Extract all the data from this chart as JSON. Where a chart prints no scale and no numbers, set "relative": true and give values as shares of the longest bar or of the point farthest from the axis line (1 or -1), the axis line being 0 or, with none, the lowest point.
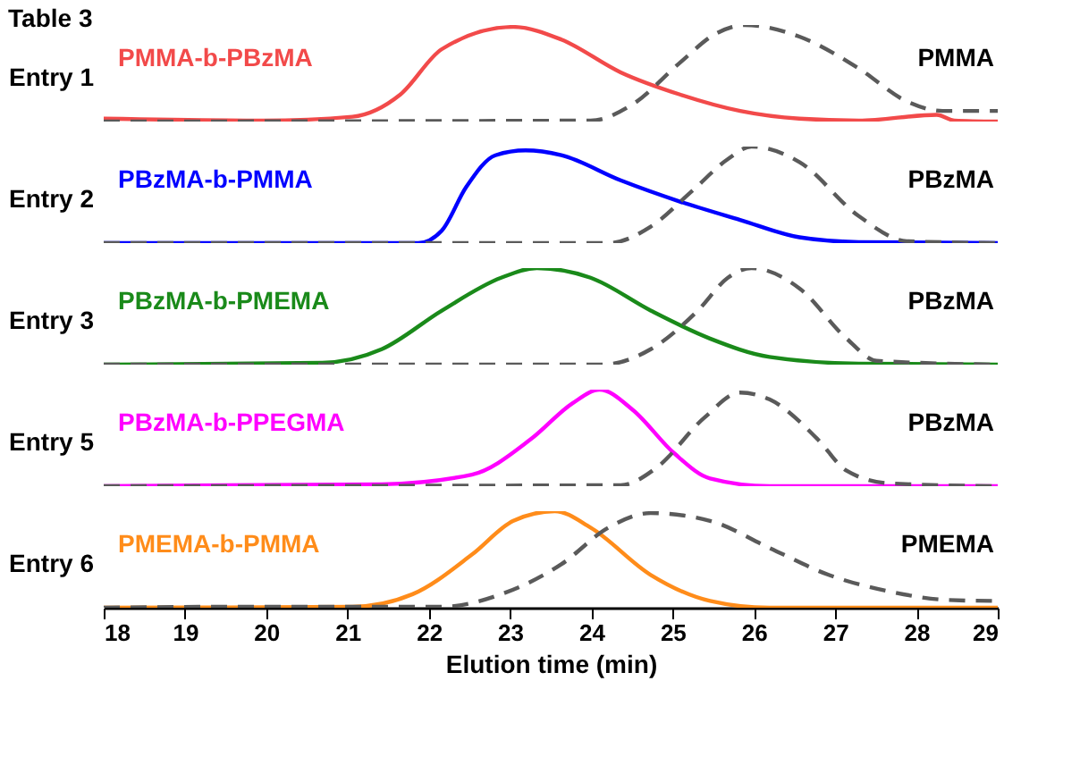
{
  "chart_data": [
    {
      "type": "line",
      "title": "Table 3",
      "ylabel": "Entry 1",
      "relative": true,
      "xlim": [
        18,
        29
      ],
      "xticks": [
        18,
        19,
        20,
        21,
        22,
        23,
        24,
        25,
        26,
        27,
        28,
        29
      ],
      "tick_labels": false,
      "grid": false,
      "legend": false,
      "marker": "none",
      "series": [
        {
          "name": "PMMA-b-PBzMA",
          "color": "#f24a4a",
          "line_style": "solid",
          "x": [
            18.0,
            19.96,
            21.06,
            21.65,
            22.16,
            23.04,
            23.63,
            24.36,
            25.09,
            25.83,
            26.56,
            27.29,
            28.25,
            28.47,
            29.0
          ],
          "values": [
            0.03,
            0.01,
            0.05,
            0.28,
            0.75,
            0.98,
            0.85,
            0.51,
            0.28,
            0.11,
            0.03,
            0.01,
            0.07,
            0.01,
            0
          ]
        },
        {
          "name": "PMMA",
          "color": "#5a5a5a",
          "line_style": "dashed",
          "x": [
            18.0,
            23.99,
            24.51,
            25.09,
            25.53,
            25.89,
            26.56,
            27.29,
            27.88,
            28.32,
            29.0
          ],
          "values": [
            0,
            0.01,
            0.18,
            0.61,
            0.91,
            1.0,
            0.88,
            0.55,
            0.21,
            0.11,
            0.11
          ]
        }
      ]
    },
    {
      "type": "line",
      "ylabel": "Entry 2",
      "relative": true,
      "xlim": [
        18,
        29
      ],
      "xticks": [
        18,
        19,
        20,
        21,
        22,
        23,
        24,
        25,
        26,
        27,
        28,
        29
      ],
      "tick_labels": false,
      "grid": false,
      "legend": false,
      "marker": "none",
      "series": [
        {
          "name": "PBzMA-b-PMMA",
          "color": "#0000ff",
          "line_style": "solid",
          "x": [
            18.0,
            21.87,
            22.16,
            22.46,
            22.82,
            23.19,
            23.63,
            24.36,
            25.09,
            25.83,
            26.56,
            27.29,
            29.0
          ],
          "values": [
            0,
            0,
            0.13,
            0.58,
            0.91,
            0.96,
            0.91,
            0.65,
            0.43,
            0.24,
            0.06,
            0.01,
            0
          ]
        },
        {
          "name": "PBzMA",
          "color": "#5a5a5a",
          "line_style": "dashed",
          "x": [
            18.0,
            24.21,
            24.73,
            25.24,
            25.68,
            25.97,
            26.56,
            27.29,
            27.88,
            29.0
          ],
          "values": [
            0,
            0,
            0.17,
            0.54,
            0.87,
            1.0,
            0.84,
            0.28,
            0.02,
            0
          ]
        }
      ]
    },
    {
      "type": "line",
      "ylabel": "Entry 3",
      "relative": true,
      "xlim": [
        18,
        29
      ],
      "xticks": [
        18,
        19,
        20,
        21,
        22,
        23,
        24,
        25,
        26,
        27,
        28,
        29
      ],
      "tick_labels": false,
      "grid": false,
      "legend": false,
      "marker": "none",
      "series": [
        {
          "name": "PBzMA-b-PMEMA",
          "color": "#1a8a1a",
          "line_style": "solid",
          "x": [
            18.0,
            20.69,
            21.42,
            22.16,
            22.89,
            23.33,
            23.99,
            24.73,
            25.46,
            26.19,
            27.29,
            29.0
          ],
          "values": [
            0,
            0.02,
            0.16,
            0.56,
            0.9,
            1.0,
            0.9,
            0.56,
            0.27,
            0.08,
            0.01,
            0
          ]
        },
        {
          "name": "PBzMA",
          "color": "#5a5a5a",
          "line_style": "dashed",
          "x": [
            18.0,
            24.14,
            24.73,
            25.31,
            25.68,
            25.97,
            26.56,
            27.14,
            27.51,
            29.0
          ],
          "values": [
            0,
            0,
            0.16,
            0.56,
            0.9,
            1.0,
            0.79,
            0.27,
            0.04,
            0
          ]
        }
      ]
    },
    {
      "type": "line",
      "ylabel": "Entry 5",
      "relative": true,
      "xlim": [
        18,
        29
      ],
      "xticks": [
        18,
        19,
        20,
        21,
        22,
        23,
        24,
        25,
        26,
        27,
        28,
        29
      ],
      "tick_labels": false,
      "grid": false,
      "legend": false,
      "marker": "none",
      "series": [
        {
          "name": "PBzMA-b-PPEGMA",
          "color": "#ff00ff",
          "line_style": "solid",
          "x": [
            18.0,
            21.42,
            22.53,
            23.26,
            23.77,
            24.1,
            24.51,
            25.02,
            25.46,
            26.19,
            29.0
          ],
          "values": [
            0,
            0.02,
            0.12,
            0.49,
            0.86,
            1.0,
            0.79,
            0.34,
            0.08,
            0,
            0
          ]
        },
        {
          "name": "PBzMA",
          "color": "#5a5a5a",
          "line_style": "dashed",
          "x": [
            18.0,
            24.36,
            24.8,
            25.39,
            25.83,
            26.19,
            26.78,
            27.14,
            27.66,
            29.0
          ],
          "values": [
            0,
            0.01,
            0.19,
            0.71,
            0.97,
            0.9,
            0.49,
            0.16,
            0.03,
            0
          ]
        }
      ]
    },
    {
      "type": "line",
      "ylabel": "Entry 6",
      "xlabel": "Elution time (min)",
      "relative": true,
      "xlim": [
        18,
        29
      ],
      "xticks": [
        18,
        19,
        20,
        21,
        22,
        23,
        24,
        25,
        26,
        27,
        28,
        29
      ],
      "tick_labels": "x",
      "grid": false,
      "legend": false,
      "marker": "none",
      "series": [
        {
          "name": "PMEMA-b-PMMA",
          "color": "#ff8c1a",
          "line_style": "solid",
          "x": [
            18.0,
            21.06,
            21.8,
            22.53,
            23.04,
            23.55,
            23.99,
            24.73,
            25.46,
            26.19,
            29.0
          ],
          "values": [
            0,
            0.01,
            0.14,
            0.55,
            0.9,
            1.0,
            0.83,
            0.34,
            0.07,
            0,
            0
          ]
        },
        {
          "name": "PMEMA",
          "color": "#5a5a5a",
          "line_style": "dashed",
          "x": [
            18.0,
            19.58,
            22.16,
            22.89,
            23.63,
            24.21,
            24.73,
            25.46,
            26.19,
            26.92,
            27.66,
            28.39,
            29.0
          ],
          "values": [
            0,
            0.01,
            0.01,
            0.14,
            0.45,
            0.83,
            0.98,
            0.9,
            0.62,
            0.34,
            0.17,
            0.08,
            0.07
          ]
        }
      ]
    }
  ]
}
